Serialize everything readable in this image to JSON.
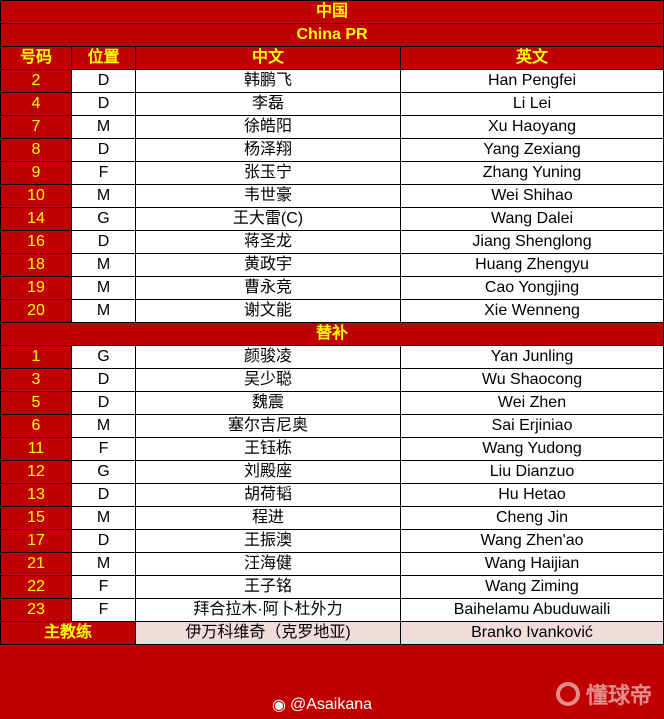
{
  "title": "中国",
  "subtitle": "China PR",
  "headers": [
    "号码",
    "位置",
    "中文",
    "英文"
  ],
  "starters": [
    [
      "2",
      "D",
      "韩鹏飞",
      "Han Pengfei"
    ],
    [
      "4",
      "D",
      "李磊",
      "Li Lei"
    ],
    [
      "7",
      "M",
      "徐皓阳",
      "Xu Haoyang"
    ],
    [
      "8",
      "D",
      "杨泽翔",
      "Yang Zexiang"
    ],
    [
      "9",
      "F",
      "张玉宁",
      "Zhang Yuning"
    ],
    [
      "10",
      "M",
      "韦世豪",
      "Wei Shihao"
    ],
    [
      "14",
      "G",
      "王大雷(C)",
      "Wang Dalei"
    ],
    [
      "16",
      "D",
      "蒋圣龙",
      "Jiang Shenglong"
    ],
    [
      "18",
      "M",
      "黄政宇",
      "Huang Zhengyu"
    ],
    [
      "19",
      "M",
      "曹永竞",
      "Cao Yongjing"
    ],
    [
      "20",
      "M",
      "谢文能",
      "Xie Wenneng"
    ]
  ],
  "subs_label": "替补",
  "subs": [
    [
      "1",
      "G",
      "颜骏凌",
      "Yan Junling"
    ],
    [
      "3",
      "D",
      "吴少聪",
      "Wu Shaocong"
    ],
    [
      "5",
      "D",
      "魏震",
      "Wei Zhen"
    ],
    [
      "6",
      "M",
      "塞尔吉尼奥",
      "Sai Erjiniao"
    ],
    [
      "11",
      "F",
      "王钰栋",
      "Wang Yudong"
    ],
    [
      "12",
      "G",
      "刘殿座",
      "Liu Dianzuo"
    ],
    [
      "13",
      "D",
      "胡荷韬",
      "Hu Hetao"
    ],
    [
      "15",
      "M",
      "程进",
      "Cheng Jin"
    ],
    [
      "17",
      "D",
      "王振澳",
      "Wang Zhen'ao"
    ],
    [
      "21",
      "M",
      "汪海健",
      "Wang Haijian"
    ],
    [
      "22",
      "F",
      "王子铭",
      "Wang Ziming"
    ],
    [
      "23",
      "F",
      "拜合拉木·阿卜杜外力",
      "Baihelamu Abuduwaili"
    ]
  ],
  "coach": {
    "label": "主教练",
    "cn": "伊万科维奇（克罗地亚)",
    "en": "Branko Ivanković"
  },
  "watermark": {
    "weibo": "@Asaikana",
    "brand": "懂球帝",
    "icons": [
      "weibo-icon",
      "dongqiudi-logo-icon"
    ]
  },
  "colors": {
    "bg": "#c00000",
    "header_text": "#ffff00",
    "coach_bg": "#f2dcdb"
  }
}
